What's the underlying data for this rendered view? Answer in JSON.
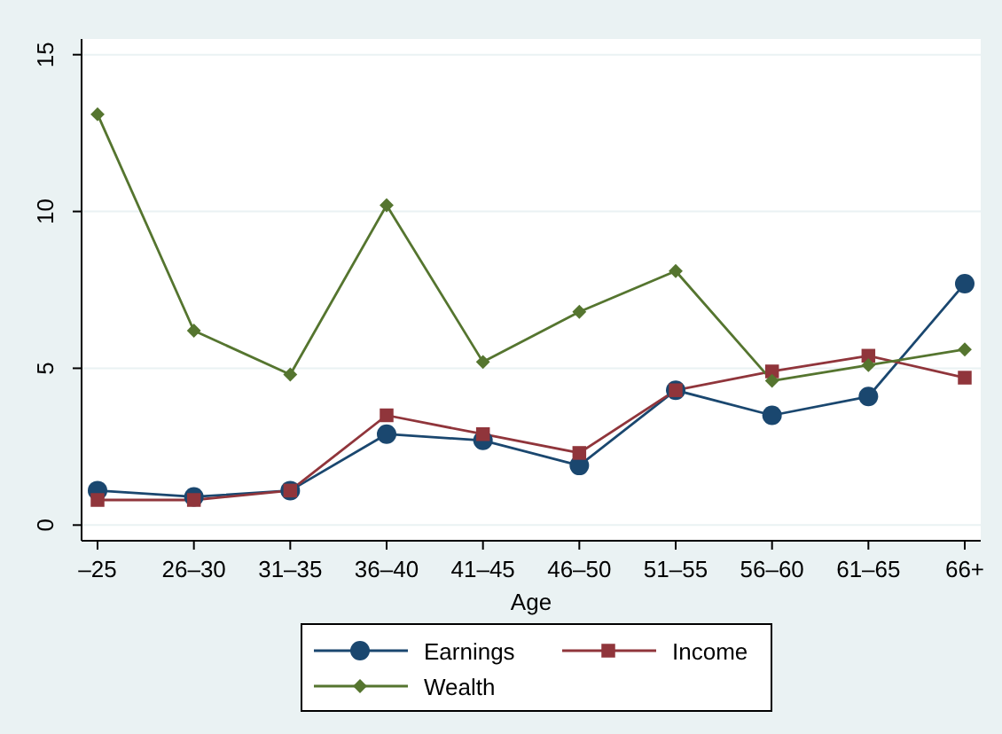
{
  "chart_data": {
    "type": "line",
    "xlabel": "Age",
    "categories": [
      "–25",
      "26–30",
      "31–35",
      "36–40",
      "41–45",
      "46–50",
      "51–55",
      "56–60",
      "61–65",
      "66+"
    ],
    "series": [
      {
        "name": "Earnings",
        "color": "#1a476f",
        "marker": "circle",
        "values": [
          1.1,
          0.9,
          1.1,
          2.9,
          2.7,
          1.9,
          4.3,
          3.5,
          4.1,
          7.7
        ]
      },
      {
        "name": "Income",
        "color": "#90353b",
        "marker": "square",
        "values": [
          0.8,
          0.8,
          1.1,
          3.5,
          2.9,
          2.3,
          4.3,
          4.9,
          5.4,
          4.7
        ]
      },
      {
        "name": "Wealth",
        "color": "#55752f",
        "marker": "diamond",
        "values": [
          13.1,
          6.2,
          4.8,
          10.2,
          5.2,
          6.8,
          8.1,
          4.6,
          5.1,
          5.6
        ]
      }
    ],
    "ylim": [
      -0.5,
      15.5
    ],
    "yticks": [
      0,
      5,
      10,
      15
    ],
    "grid": "y",
    "legend": "bottom",
    "line_style": "solid"
  }
}
